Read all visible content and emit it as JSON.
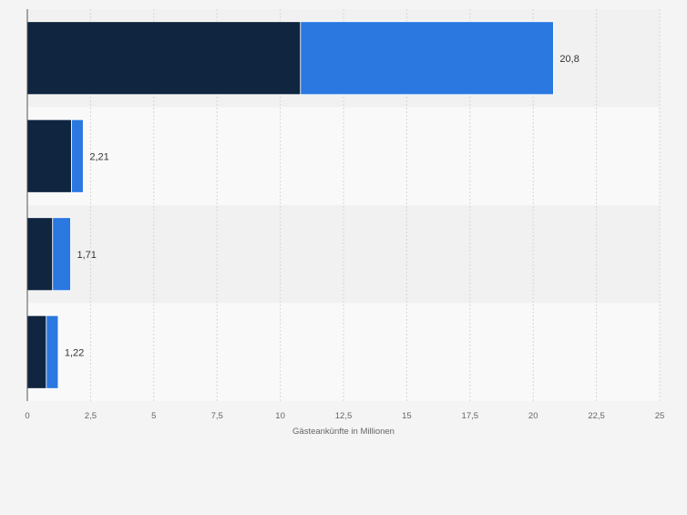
{
  "chart_data": {
    "type": "bar",
    "orientation": "horizontal",
    "stacked": true,
    "categories": [
      "",
      "",
      "",
      ""
    ],
    "series": [
      {
        "values": [
          10.8,
          1.75,
          1.0,
          0.75
        ],
        "color": "#0f2540"
      },
      {
        "values": [
          10.0,
          0.46,
          0.71,
          0.47
        ],
        "color": "#2a78e0"
      }
    ],
    "totals": [
      20.8,
      2.21,
      1.71,
      1.22
    ],
    "total_labels": [
      "20,8",
      "2,21",
      "1,71",
      "1,22"
    ],
    "xlabel": "Gästeankünfte in Millionen",
    "xlim": [
      0,
      25
    ],
    "xticks": [
      0,
      2.5,
      5,
      7.5,
      10,
      12.5,
      15,
      17.5,
      20,
      22.5,
      25
    ],
    "xtick_labels": [
      "0",
      "2,5",
      "5",
      "7,5",
      "10",
      "12,5",
      "15",
      "17,5",
      "20",
      "22,5",
      "25"
    ],
    "grid": true,
    "band_colors": [
      "#f1f1f1",
      "#f9f9f9"
    ],
    "axis_color": "#555555"
  }
}
